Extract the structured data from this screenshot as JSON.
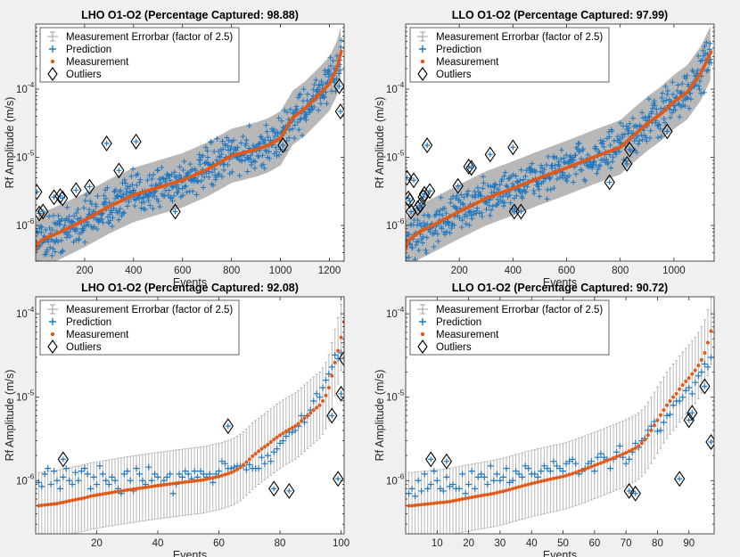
{
  "figure": {
    "background": "#f0f0f0"
  },
  "legend": {
    "errorbar_label": "Measurement Errorbar (factor of 2.5)",
    "prediction_label": "Prediction",
    "measurement_label": "Measurement",
    "outliers_label": "Outliers"
  },
  "colors": {
    "prediction": "#1f77c0",
    "measurement": "#e05a1a",
    "errorbar": "#b8b8b8",
    "outlier": "#000000",
    "axes_bg": "#ffffff"
  },
  "chart_data": [
    {
      "type": "scatter",
      "title": "LHO O1-O2 (Percentage Captured: 98.88)",
      "xlabel": "Events",
      "ylabel": "Rf Amplitude (m/s)",
      "yscale": "log",
      "xlim": [
        0,
        1260
      ],
      "ylim": [
        3e-07,
        0.0009
      ],
      "xticks": [
        200,
        400,
        600,
        800,
        1000,
        1200
      ],
      "yticks": [
        1e-06,
        1e-05,
        0.0001
      ],
      "ytick_labels": [
        [
          "10",
          "-6"
        ],
        [
          "10",
          "-5"
        ],
        [
          "10",
          "-4"
        ]
      ],
      "legend_position": "top-left",
      "n_events": 1250,
      "measurement_curve": [
        [
          0,
          4.3e-07
        ],
        [
          10,
          5.5e-07
        ],
        [
          40,
          6.5e-07
        ],
        [
          100,
          8e-07
        ],
        [
          200,
          1.2e-06
        ],
        [
          300,
          1.9e-06
        ],
        [
          400,
          2.8e-06
        ],
        [
          500,
          3.6e-06
        ],
        [
          600,
          4.6e-06
        ],
        [
          700,
          6.6e-06
        ],
        [
          800,
          1.05e-05
        ],
        [
          900,
          1.3e-05
        ],
        [
          950,
          1.5e-05
        ],
        [
          1000,
          1.9e-05
        ],
        [
          1050,
          3.8e-05
        ],
        [
          1100,
          5.2e-05
        ],
        [
          1150,
          7.8e-05
        ],
        [
          1200,
          0.00012
        ],
        [
          1230,
          0.0002
        ],
        [
          1250,
          0.00037
        ]
      ],
      "prediction_scatter_factor": 1.9,
      "outliers": [
        [
          5,
          3.1e-06
        ],
        [
          15,
          1.5e-06
        ],
        [
          30,
          1.6e-06
        ],
        [
          75,
          2.6e-06
        ],
        [
          100,
          2.7e-06
        ],
        [
          110,
          2.5e-06
        ],
        [
          165,
          3.3e-06
        ],
        [
          220,
          3.7e-06
        ],
        [
          290,
          1.6e-05
        ],
        [
          340,
          6.4e-06
        ],
        [
          410,
          1.7e-05
        ],
        [
          570,
          1.6e-06
        ],
        [
          1010,
          1.5e-05
        ],
        [
          1240,
          0.00011
        ],
        [
          1245,
          4.7e-05
        ]
      ]
    },
    {
      "type": "scatter",
      "title": "LLO O1-O2 (Percentage Captured: 97.99)",
      "xlabel": "Events",
      "ylabel": "Rf Amplitude (m/s)",
      "yscale": "log",
      "xlim": [
        0,
        1150
      ],
      "ylim": [
        3e-07,
        0.0009
      ],
      "xticks": [
        200,
        400,
        600,
        800,
        1000
      ],
      "yticks": [
        1e-06,
        1e-05,
        0.0001
      ],
      "ytick_labels": [
        [
          "10",
          "-6"
        ],
        [
          "10",
          "-5"
        ],
        [
          "10",
          "-4"
        ]
      ],
      "legend_position": "top-left",
      "n_events": 1140,
      "measurement_curve": [
        [
          0,
          4.4e-07
        ],
        [
          10,
          6e-07
        ],
        [
          50,
          8e-07
        ],
        [
          100,
          1e-06
        ],
        [
          200,
          1.6e-06
        ],
        [
          300,
          2.5e-06
        ],
        [
          400,
          3.5e-06
        ],
        [
          500,
          5e-06
        ],
        [
          600,
          7e-06
        ],
        [
          700,
          1e-05
        ],
        [
          800,
          1.4e-05
        ],
        [
          850,
          2.1e-05
        ],
        [
          900,
          3.1e-05
        ],
        [
          950,
          4.3e-05
        ],
        [
          1000,
          6.5e-05
        ],
        [
          1050,
          9e-05
        ],
        [
          1100,
          0.00017
        ],
        [
          1140,
          0.00036
        ]
      ],
      "prediction_scatter_factor": 1.9,
      "outliers": [
        [
          5,
          5e-06
        ],
        [
          10,
          2.5e-06
        ],
        [
          15,
          2.3e-06
        ],
        [
          20,
          1.6e-06
        ],
        [
          30,
          4.6e-06
        ],
        [
          45,
          1.8e-06
        ],
        [
          55,
          2e-06
        ],
        [
          65,
          2.6e-06
        ],
        [
          70,
          2.9e-06
        ],
        [
          80,
          1.5e-05
        ],
        [
          90,
          3.2e-06
        ],
        [
          195,
          3.8e-06
        ],
        [
          235,
          7.3e-06
        ],
        [
          245,
          7e-06
        ],
        [
          315,
          1.1e-05
        ],
        [
          400,
          1.4e-05
        ],
        [
          405,
          1.6e-06
        ],
        [
          430,
          1.6e-06
        ],
        [
          760,
          4.3e-06
        ],
        [
          825,
          8e-06
        ],
        [
          835,
          1.3e-05
        ],
        [
          975,
          2.4e-05
        ]
      ]
    },
    {
      "type": "scatter",
      "title": "LHO O1-O2 (Percentage Captured: 92.08)",
      "xlabel": "Events",
      "ylabel": "Rf Amplitude (m/s)",
      "yscale": "log",
      "xlim": [
        0,
        101
      ],
      "ylim": [
        2.3e-07,
        0.00016
      ],
      "xticks": [
        20,
        40,
        60,
        80,
        100
      ],
      "yticks": [
        1e-06,
        1e-05,
        0.0001
      ],
      "ytick_labels": [
        [
          "10",
          "-6"
        ],
        [
          "10",
          "-5"
        ],
        [
          "10",
          "-4"
        ]
      ],
      "legend_position": "top-left",
      "measurement": [
        5e-07,
        5.05e-07,
        5.1e-07,
        5.15e-07,
        5.2e-07,
        5.25e-07,
        5.3e-07,
        5.4e-07,
        5.5e-07,
        5.6e-07,
        5.7e-07,
        5.8e-07,
        5.9e-07,
        6e-07,
        6.1e-07,
        6.2e-07,
        6.35e-07,
        6.5e-07,
        6.6e-07,
        6.7e-07,
        6.8e-07,
        6.9e-07,
        7e-07,
        7.1e-07,
        7.2e-07,
        7.3e-07,
        7.4e-07,
        7.5e-07,
        7.6e-07,
        7.7e-07,
        7.8e-07,
        7.9e-07,
        8e-07,
        8.1e-07,
        8.2e-07,
        8.3e-07,
        8.4e-07,
        8.5e-07,
        8.6e-07,
        8.7e-07,
        8.8e-07,
        8.9e-07,
        9e-07,
        9.1e-07,
        9.2e-07,
        9.3e-07,
        9.4e-07,
        9.5e-07,
        9.6e-07,
        9.7e-07,
        9.8e-07,
        9.9e-07,
        1e-06,
        1.01e-06,
        1.02e-06,
        1.04e-06,
        1.06e-06,
        1.08e-06,
        1.1e-06,
        1.12e-06,
        1.15e-06,
        1.18e-06,
        1.21e-06,
        1.25e-06,
        1.3e-06,
        1.36e-06,
        1.44e-06,
        1.54e-06,
        1.66e-06,
        1.8e-06,
        1.96e-06,
        2.1e-06,
        2.25e-06,
        2.4e-06,
        2.55e-06,
        2.7e-06,
        2.9e-06,
        3.1e-06,
        3.3e-06,
        3.5e-06,
        3.7e-06,
        3.9e-06,
        4.1e-06,
        4.3e-06,
        4.5e-06,
        4.8e-06,
        5.2e-06,
        5.6e-06,
        6e-06,
        6.5e-06,
        7e-06,
        7.5e-06,
        8e-06,
        9e-06,
        1.05e-05,
        1.3e-05,
        1.8e-05,
        2.6e-05,
        3.6e-05,
        5.2e-05,
        8e-05
      ],
      "prediction": [
        9.5e-07,
        8.5e-07,
        1.2e-06,
        1.4e-06,
        9e-07,
        1.3e-06,
        1e-06,
        8e-07,
        1.1e-06,
        1.4e-06,
        1e-06,
        9e-07,
        1.25e-06,
        1e-06,
        1.3e-06,
        1.4e-06,
        1.2e-06,
        8e-07,
        1.1e-06,
        9e-07,
        1.5e-06,
        1.2e-06,
        1e-06,
        9e-07,
        1.1e-06,
        1e-06,
        8e-07,
        7e-07,
        1.2e-06,
        1.3e-06,
        1e-06,
        7.5e-07,
        1.4e-06,
        1.2e-06,
        1e-06,
        9e-07,
        1.45e-06,
        1e-06,
        1.2e-06,
        1.1e-06,
        9e-07,
        1e-06,
        1.1e-06,
        1.2e-06,
        7e-07,
        9e-07,
        1.2e-06,
        1.1e-06,
        1.3e-06,
        1.2e-06,
        1.05e-06,
        1.3e-06,
        1.1e-06,
        1.3e-06,
        1.2e-06,
        1.1e-06,
        1.2e-06,
        9.5e-07,
        1.2e-06,
        1.3e-06,
        1.7e-06,
        1.6e-06,
        1.4e-06,
        1.4e-06,
        1.45e-06,
        1.5e-06,
        1.5e-06,
        1.5e-06,
        1.35e-06,
        1.55e-06,
        1.4e-06,
        1.4e-06,
        1.4e-06,
        1.9e-06,
        1.6e-06,
        2e-06,
        1.7e-06,
        2.2e-06,
        2.4e-06,
        2.8e-06,
        3e-06,
        3.4e-06,
        3.8e-06,
        3.8e-06,
        4e-06,
        4.5e-06,
        6e-06,
        5e-06,
        6e-06,
        7e-06,
        9e-06,
        1.1e-05,
        1e-05,
        1.3e-05,
        1.6e-05,
        1.9e-05,
        2.3e-05,
        3.2e-05,
        2.9e-05,
        3.4e-05,
        4.5e-05
      ],
      "outliers": [
        [
          9,
          1.8e-06
        ],
        [
          63,
          4.5e-06
        ],
        [
          78,
          8e-07
        ],
        [
          83,
          7.5e-07
        ],
        [
          97,
          6e-06
        ],
        [
          99,
          1.05e-06
        ],
        [
          100,
          1.1e-05
        ],
        [
          101,
          2.9e-05
        ]
      ]
    },
    {
      "type": "scatter",
      "title": "LLO O1-O2 (Percentage Captured: 90.72)",
      "xlabel": "Events",
      "ylabel": "Rf Amplitude (m/s)",
      "yscale": "log",
      "xlim": [
        0,
        98
      ],
      "ylim": [
        2.3e-07,
        0.00016
      ],
      "xticks": [
        10,
        20,
        30,
        40,
        50,
        60,
        70,
        80,
        90
      ],
      "yticks": [
        1e-06,
        1e-05,
        0.0001
      ],
      "ytick_labels": [
        [
          "10",
          "-6"
        ],
        [
          "10",
          "-5"
        ],
        [
          "10",
          "-4"
        ]
      ],
      "legend_position": "top-left",
      "measurement": [
        5e-07,
        5e-07,
        5.05e-07,
        5.1e-07,
        5.15e-07,
        5.2e-07,
        5.25e-07,
        5.3e-07,
        5.35e-07,
        5.4e-07,
        5.45e-07,
        5.5e-07,
        5.55e-07,
        5.6e-07,
        5.7e-07,
        5.8e-07,
        5.9e-07,
        6e-07,
        6.1e-07,
        6.2e-07,
        6.3e-07,
        6.4e-07,
        6.5e-07,
        6.6e-07,
        6.7e-07,
        6.8e-07,
        6.9e-07,
        7e-07,
        7.15e-07,
        7.3e-07,
        7.45e-07,
        7.6e-07,
        7.8e-07,
        8e-07,
        8.2e-07,
        8.4e-07,
        8.6e-07,
        8.8e-07,
        9e-07,
        9.2e-07,
        9.4e-07,
        9.6e-07,
        9.8e-07,
        1e-06,
        1.02e-06,
        1.04e-06,
        1.06e-06,
        1.08e-06,
        1.1e-06,
        1.12e-06,
        1.15e-06,
        1.18e-06,
        1.21e-06,
        1.25e-06,
        1.29e-06,
        1.33e-06,
        1.37e-06,
        1.42e-06,
        1.47e-06,
        1.52e-06,
        1.57e-06,
        1.62e-06,
        1.68e-06,
        1.74e-06,
        1.8e-06,
        1.86e-06,
        1.93e-06,
        2e-06,
        2.08e-06,
        2.16e-06,
        2.25e-06,
        2.35e-06,
        2.45e-06,
        2.6e-06,
        2.8e-06,
        3.1e-06,
        3.5e-06,
        4e-06,
        4.6e-06,
        5.3e-06,
        6.1e-06,
        7e-06,
        8e-06,
        9e-06,
        1e-05,
        1.1e-05,
        1.25e-05,
        1.4e-05,
        1.55e-05,
        1.7e-05,
        1.9e-05,
        2.1e-05,
        2.4e-05,
        2.8e-05,
        3.4e-05,
        4.5e-05,
        6.2e-05
      ],
      "prediction": [
        7e-07,
        8e-07,
        6.5e-07,
        1e-06,
        7.5e-07,
        1.2e-06,
        8e-07,
        9e-07,
        1.3e-06,
        1e-06,
        8e-07,
        7.5e-07,
        1.1e-06,
        8.5e-07,
        9e-07,
        8e-07,
        8e-07,
        1.2e-06,
        7e-07,
        9e-07,
        1.3e-06,
        8e-07,
        1.1e-06,
        1.2e-06,
        1.1e-06,
        9e-07,
        1.5e-06,
        1e-06,
        1.2e-06,
        1e-06,
        1.1e-06,
        1.4e-06,
        9.5e-07,
        1e-06,
        1.3e-06,
        1.2e-06,
        1.1e-06,
        1.5e-06,
        1.4e-06,
        1.2e-06,
        1.2e-06,
        1.1e-06,
        1.3e-06,
        1.5e-06,
        1.4e-06,
        1.3e-06,
        1.7e-06,
        1.5e-06,
        1.4e-06,
        1.3e-06,
        1.6e-06,
        1.7e-06,
        1.8e-06,
        1.6e-06,
        1.2e-06,
        1.3e-06,
        1.4e-06,
        1.6e-06,
        1.7e-06,
        1.3e-06,
        1.9e-06,
        2.1e-06,
        1.9e-06,
        1.8e-06,
        1.4e-06,
        1.8e-06,
        2.2e-06,
        2.6e-06,
        1.9e-06,
        1.6e-06,
        1.8e-06,
        2.2e-06,
        2.8e-06,
        2.5e-06,
        3e-06,
        3.2e-06,
        4e-06,
        4.5e-06,
        5.1e-06,
        3.9e-06,
        4e-06,
        5e-06,
        6e-06,
        6.2e-06,
        8e-06,
        9e-06,
        9e-06,
        1e-05,
        1.2e-05,
        1.3e-05,
        1.1e-05,
        1.5e-05,
        1.8e-05,
        2e-05,
        2.5e-05,
        2.3e-05,
        3e-05
      ],
      "outliers": [
        [
          8,
          1.8e-06
        ],
        [
          13,
          1.7e-06
        ],
        [
          71,
          7.5e-07
        ],
        [
          73,
          7e-07
        ],
        [
          87,
          1.05e-06
        ],
        [
          90,
          5.3e-06
        ],
        [
          91,
          6.5e-06
        ],
        [
          95,
          1.35e-05
        ],
        [
          97,
          2.9e-06
        ]
      ]
    }
  ]
}
